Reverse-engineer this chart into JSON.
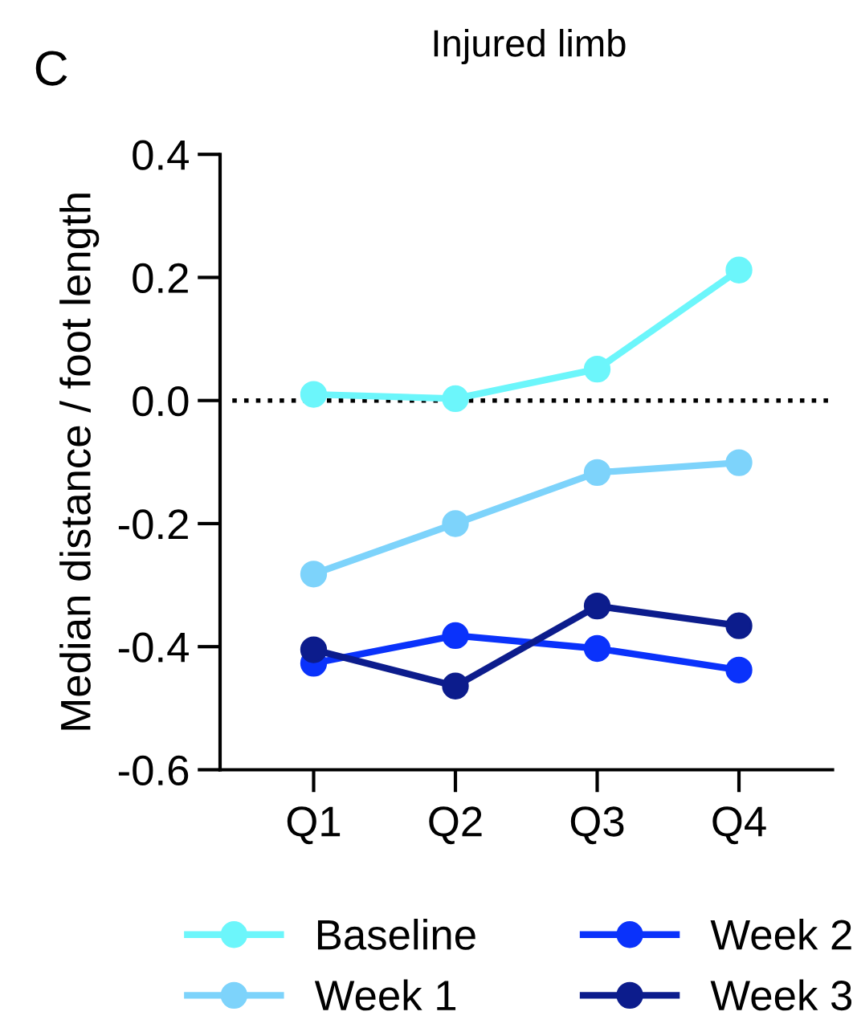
{
  "chart_data": {
    "type": "line",
    "title": "Injured limb",
    "ylabel": "Median distance / foot length",
    "annotations": [
      "C"
    ],
    "categories": [
      "Q1",
      "Q2",
      "Q3",
      "Q4"
    ],
    "series": [
      {
        "name": "Baseline",
        "color": "#6cf6fb",
        "values": [
          0.01,
          0.003,
          0.051,
          0.212
        ]
      },
      {
        "name": "Week 1",
        "color": "#7dd3fb",
        "values": [
          -0.282,
          -0.2,
          -0.117,
          -0.101
        ]
      },
      {
        "name": "Week 2",
        "color": "#0a32fb",
        "values": [
          -0.427,
          -0.382,
          -0.403,
          -0.438
        ]
      },
      {
        "name": "Week 3",
        "color": "#0c1c8c",
        "values": [
          -0.405,
          -0.464,
          -0.334,
          -0.366
        ]
      }
    ],
    "ylim": [
      -0.6,
      0.4
    ],
    "yticks": [
      {
        "value": -0.6,
        "label": "-0.6"
      },
      {
        "value": -0.4,
        "label": "-0.4"
      },
      {
        "value": -0.2,
        "label": "-0.2"
      },
      {
        "value": 0.0,
        "label": "0.0"
      },
      {
        "value": 0.2,
        "label": "0.2"
      },
      {
        "value": 0.4,
        "label": "0.4"
      }
    ],
    "ref_lines": [
      {
        "axis": "y",
        "value": 0,
        "color": "#000000",
        "line_style": "dotted"
      }
    ],
    "grid": false,
    "legend": "bottom",
    "marker": "circle",
    "line_style": "solid"
  }
}
